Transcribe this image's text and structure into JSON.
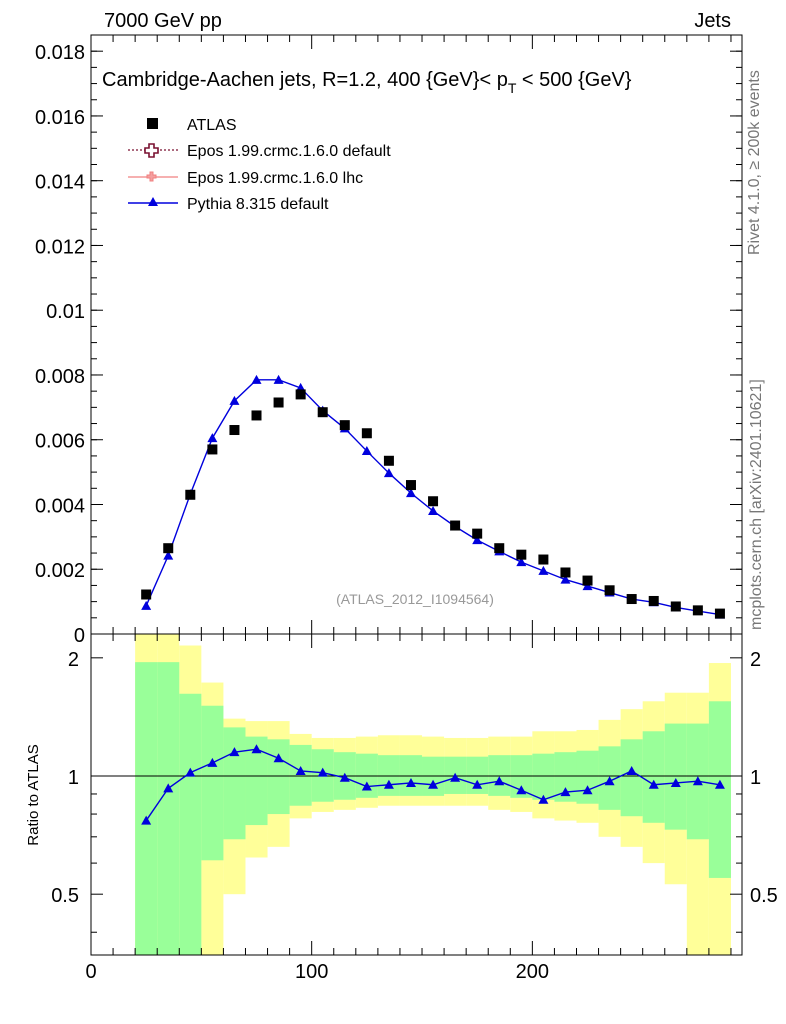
{
  "header": {
    "left": "7000 GeV pp",
    "right": "Jets",
    "rivet": "Rivet 4.1.0, ≥ 200k events",
    "source": "mcplots.cern.ch [arXiv:2401.10621]"
  },
  "colors": {
    "data": "#000000",
    "epos_default": "#7a1030",
    "epos_lhc": "#f08080",
    "pythia": "#0000dd",
    "band_inner": "#99ff99",
    "band_outer": "#ffff99"
  },
  "icons": [
    "square-marker-icon",
    "open-cross-marker-icon",
    "cross-marker-icon",
    "triangle-marker-icon"
  ],
  "chart_data": [
    {
      "type": "scatter",
      "title": "Cambridge-Aachen jets, R=1.2, 400 {GeV}< p_T < 500 {GeV}",
      "title_main": "Cambridge-Aachen jets, R=1.2, 400 {GeV}< p",
      "title_sub": "T",
      "title_end": " < 500 {GeV}",
      "watermark": "(ATLAS_2012_I1094564)",
      "xlabel": "",
      "ylabel": "",
      "xlim": [
        0,
        295
      ],
      "ylim": [
        0,
        0.0185
      ],
      "yticks": [
        0,
        0.002,
        0.004,
        0.006,
        0.008,
        0.01,
        0.012,
        0.014,
        0.016,
        0.018
      ],
      "ytick_labels": [
        "0",
        "0.002",
        "0.004",
        "0.006",
        "0.008",
        "0.01",
        "0.012",
        "0.014",
        "0.016",
        "0.018"
      ],
      "legend": {
        "position": "top-left",
        "entries": [
          {
            "label": "ATLAS",
            "marker": "square"
          },
          {
            "label": "Epos 1.99.crmc.1.6.0 default",
            "marker": "open-cross"
          },
          {
            "label": "Epos 1.99.crmc.1.6.0 lhc",
            "marker": "cross"
          },
          {
            "label": "Pythia 8.315 default",
            "marker": "triangle"
          }
        ]
      },
      "x": [
        25,
        35,
        45,
        55,
        65,
        75,
        85,
        95,
        105,
        115,
        125,
        135,
        145,
        155,
        165,
        175,
        185,
        195,
        205,
        215,
        225,
        235,
        245,
        255,
        265,
        275,
        285
      ],
      "series": [
        {
          "name": "ATLAS",
          "values": [
            0.00122,
            0.00265,
            0.0043,
            0.0057,
            0.0063,
            0.00675,
            0.00715,
            0.0074,
            0.00685,
            0.00645,
            0.0062,
            0.00535,
            0.0046,
            0.0041,
            0.00335,
            0.0031,
            0.00265,
            0.00245,
            0.0023,
            0.0019,
            0.00165,
            0.00135,
            0.00108,
            0.00102,
            0.00085,
            0.00073,
            0.00063
          ]
        },
        {
          "name": "Pythia 8.315 default",
          "values": [
            0.00087,
            0.00242,
            0.00432,
            0.00605,
            0.0072,
            0.00785,
            0.00785,
            0.0076,
            0.0069,
            0.00635,
            0.00565,
            0.00497,
            0.00435,
            0.0038,
            0.00332,
            0.0029,
            0.00255,
            0.00222,
            0.00195,
            0.00168,
            0.00148,
            0.00128,
            0.00108,
            0.00098,
            0.00082,
            0.00071,
            0.0006
          ]
        }
      ]
    },
    {
      "type": "line",
      "ylabel": "Ratio to ATLAS",
      "xlim": [
        0,
        295
      ],
      "ylim": [
        0.35,
        2.3
      ],
      "yscale": "log",
      "xticks": [
        0,
        100,
        200
      ],
      "xtick_labels": [
        "0",
        "100",
        "200"
      ],
      "yticks": [
        0.5,
        1,
        2
      ],
      "ytick_labels": [
        "0.5",
        "1",
        "2"
      ],
      "bin_edges": [
        20,
        30,
        40,
        50,
        60,
        70,
        80,
        90,
        100,
        110,
        120,
        130,
        140,
        150,
        160,
        170,
        180,
        190,
        200,
        210,
        220,
        230,
        240,
        250,
        260,
        270,
        280,
        290
      ],
      "band_inner": {
        "lo": [
          0.3,
          0.3,
          0.3,
          0.61,
          0.69,
          0.75,
          0.8,
          0.84,
          0.86,
          0.87,
          0.88,
          0.89,
          0.89,
          0.89,
          0.9,
          0.9,
          0.89,
          0.88,
          0.87,
          0.86,
          0.85,
          0.82,
          0.79,
          0.76,
          0.73,
          0.69,
          0.55
        ],
        "hi": [
          1.95,
          1.95,
          1.62,
          1.51,
          1.33,
          1.26,
          1.24,
          1.2,
          1.17,
          1.15,
          1.14,
          1.13,
          1.13,
          1.12,
          1.12,
          1.12,
          1.13,
          1.13,
          1.14,
          1.15,
          1.16,
          1.19,
          1.24,
          1.3,
          1.36,
          1.36,
          1.55
        ]
      },
      "band_outer": {
        "lo": [
          0.3,
          0.3,
          0.3,
          0.3,
          0.5,
          0.62,
          0.66,
          0.78,
          0.81,
          0.82,
          0.83,
          0.84,
          0.84,
          0.84,
          0.84,
          0.84,
          0.82,
          0.81,
          0.78,
          0.77,
          0.76,
          0.7,
          0.66,
          0.6,
          0.53,
          0.3,
          0.3
        ],
        "hi": [
          2.3,
          2.3,
          2.15,
          1.73,
          1.4,
          1.38,
          1.38,
          1.28,
          1.25,
          1.25,
          1.26,
          1.27,
          1.27,
          1.26,
          1.25,
          1.25,
          1.26,
          1.26,
          1.3,
          1.3,
          1.31,
          1.39,
          1.48,
          1.55,
          1.63,
          1.63,
          1.94
        ]
      },
      "reference_line": 1,
      "series": [
        {
          "name": "Pythia 8.315 default",
          "x": [
            25,
            35,
            45,
            55,
            65,
            75,
            85,
            95,
            105,
            115,
            125,
            135,
            145,
            155,
            165,
            175,
            185,
            195,
            205,
            215,
            225,
            235,
            245,
            255,
            265,
            275,
            285
          ],
          "values": [
            0.77,
            0.93,
            1.02,
            1.08,
            1.15,
            1.17,
            1.11,
            1.03,
            1.02,
            0.99,
            0.94,
            0.95,
            0.96,
            0.95,
            0.99,
            0.95,
            0.97,
            0.92,
            0.87,
            0.91,
            0.92,
            0.97,
            1.03,
            0.95,
            0.96,
            0.97,
            0.95
          ]
        }
      ]
    }
  ]
}
